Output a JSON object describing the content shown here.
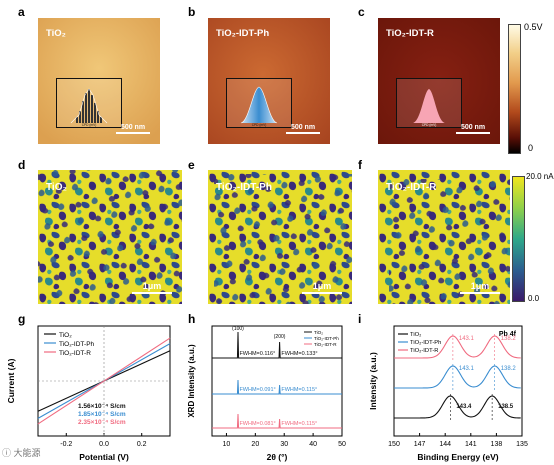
{
  "row1": {
    "panels": [
      {
        "letter": "a",
        "title": "TiO₂",
        "scale": "500 nm",
        "inset_x": "CPD (mV)",
        "inset_y": "Count (%)",
        "color": "#e6b360"
      },
      {
        "letter": "b",
        "title": "TiO₂-IDT-Ph",
        "scale": "500 nm",
        "inset_x": "CPD (mV)",
        "inset_y": "Counts (%)",
        "color": "#c05a28"
      },
      {
        "letter": "c",
        "title": "TiO₂-IDT-R",
        "scale": "500 nm",
        "inset_x": "CPD (mV)",
        "inset_y": "Count (%)",
        "color": "#7a1a0e"
      }
    ],
    "colorbar_top": "0.5V",
    "colorbar_bottom": "0"
  },
  "row2": {
    "panels": [
      {
        "letter": "d",
        "title": "TiO₂",
        "scale": "1μm"
      },
      {
        "letter": "e",
        "title": "TiO₂-IDT-Ph",
        "scale": "1μm"
      },
      {
        "letter": "f",
        "title": "TiO₂-IDT-R",
        "scale": "1μm"
      }
    ],
    "colorbar_top": "20.0 nA",
    "colorbar_bottom": "0.0"
  },
  "panel_g": {
    "letter": "g"
  },
  "panel_h": {
    "letter": "h"
  },
  "panel_i": {
    "letter": "i"
  },
  "colors": {
    "black": "#111111",
    "blue": "#3a8dd0",
    "pink": "#f06b80"
  },
  "watermark": "大能源",
  "chart_data": [
    {
      "type": "line",
      "xlabel": "Potential (V)",
      "ylabel": "Current (A)",
      "xticks": [
        "-0.2",
        "0.0",
        "0.2"
      ],
      "xlim": [
        -0.35,
        0.35
      ],
      "ylim": [
        -1,
        1
      ],
      "series": [
        {
          "name": "TiO₂",
          "x": [
            -0.35,
            0.35
          ],
          "y": [
            -0.55,
            0.55
          ]
        },
        {
          "name": "TiO₂-IDT-Ph",
          "x": [
            -0.35,
            0.35
          ],
          "y": [
            -0.68,
            0.68
          ]
        },
        {
          "name": "TiO₂-IDT-R",
          "x": [
            -0.35,
            0.35
          ],
          "y": [
            -0.78,
            0.78
          ]
        }
      ],
      "annotations": [
        "1.56×10⁻⁴ S/cm",
        "1.85×10⁻⁴ S/cm",
        "2.35×10⁻⁴ S/cm"
      ]
    },
    {
      "type": "line",
      "xlabel": "2θ (°)",
      "ylabel": "XRD Intensity (a.u.)",
      "xticks": [
        "10",
        "20",
        "30",
        "40",
        "50"
      ],
      "xlim": [
        5,
        50
      ],
      "series": [
        {
          "name": "TiO₂",
          "x": [
            5,
            13.8,
            14.0,
            14.2,
            28.2,
            28.4,
            28.6,
            50
          ]
        },
        {
          "name": "TiO₂-IDT-Ph",
          "x": [
            5,
            13.8,
            14.0,
            14.2,
            28.2,
            28.4,
            28.6,
            50
          ]
        },
        {
          "name": "TiO₂-IDT-R",
          "x": [
            5,
            13.8,
            14.0,
            14.2,
            28.2,
            28.4,
            28.6,
            50
          ]
        }
      ],
      "peaks": [
        "(100)",
        "(200)"
      ],
      "annotations": [
        [
          "FWHM=0.116°",
          "FWHM=0.133°"
        ],
        [
          "FWHM=0.091°",
          "FWHM=0.115°"
        ],
        [
          "FWHM=0.081°",
          "FWHM=0.115°"
        ]
      ]
    },
    {
      "type": "line",
      "xlabel": "Binding Energy (eV)",
      "ylabel": "Intensity (a.u.)",
      "xticks": [
        "150",
        "147",
        "144",
        "141",
        "138",
        "135"
      ],
      "xlim": [
        150,
        135
      ],
      "title": "Pb 4f",
      "series": [
        {
          "name": "TiO₂",
          "peaks": [
            143.4,
            138.5
          ]
        },
        {
          "name": "TiO₂-IDT-Ph",
          "peaks": [
            143.1,
            138.2
          ]
        },
        {
          "name": "TiO₂-IDT-R",
          "peaks": [
            143.1,
            138.2
          ]
        }
      ],
      "annotations": [
        [
          "143.4",
          "138.5"
        ],
        [
          "143.1",
          "138.2"
        ],
        [
          "143.1",
          "138.2"
        ]
      ]
    }
  ]
}
